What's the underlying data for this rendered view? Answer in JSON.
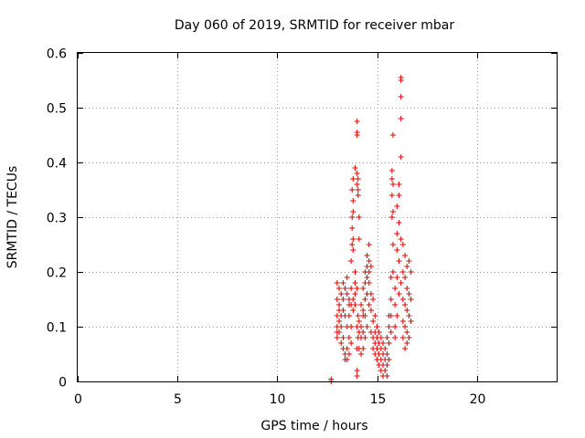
{
  "chart_data": {
    "type": "scatter",
    "title": "Day 060 of 2019, SRMTID for receiver mbar",
    "xlabel": "GPS time / hours",
    "ylabel": "SRMTID / TECUs",
    "xlim": [
      0,
      24
    ],
    "ylim": [
      0,
      0.6
    ],
    "xticks": [
      0,
      5,
      10,
      15,
      20
    ],
    "xtick_labels": [
      "0",
      "5",
      "10",
      "15",
      "20"
    ],
    "yticks": [
      0,
      0.1,
      0.2,
      0.3,
      0.4,
      0.5,
      0.6
    ],
    "ytick_labels": [
      "0",
      "0.1",
      "0.2",
      "0.3",
      "0.4",
      "0.5",
      "0.6"
    ],
    "grid": true,
    "marker": "+",
    "color": "#e00000",
    "series": [
      {
        "name": "mbar",
        "points": [
          [
            12.7,
            0.0
          ],
          [
            12.7,
            0.004
          ],
          [
            13.0,
            0.18
          ],
          [
            13.0,
            0.15
          ],
          [
            13.0,
            0.12
          ],
          [
            13.0,
            0.1
          ],
          [
            13.0,
            0.09
          ],
          [
            13.0,
            0.08
          ],
          [
            13.1,
            0.17
          ],
          [
            13.1,
            0.14
          ],
          [
            13.1,
            0.13
          ],
          [
            13.1,
            0.11
          ],
          [
            13.1,
            0.09
          ],
          [
            13.2,
            0.16
          ],
          [
            13.2,
            0.12
          ],
          [
            13.2,
            0.1
          ],
          [
            13.2,
            0.07
          ],
          [
            13.3,
            0.18
          ],
          [
            13.3,
            0.15
          ],
          [
            13.3,
            0.13
          ],
          [
            13.3,
            0.08
          ],
          [
            13.3,
            0.06
          ],
          [
            13.4,
            0.17
          ],
          [
            13.4,
            0.12
          ],
          [
            13.4,
            0.05
          ],
          [
            13.4,
            0.04
          ],
          [
            13.5,
            0.19
          ],
          [
            13.5,
            0.16
          ],
          [
            13.5,
            0.1
          ],
          [
            13.5,
            0.06
          ],
          [
            13.5,
            0.04
          ],
          [
            13.6,
            0.15
          ],
          [
            13.6,
            0.14
          ],
          [
            13.6,
            0.12
          ],
          [
            13.6,
            0.08
          ],
          [
            13.6,
            0.05
          ],
          [
            13.7,
            0.22
          ],
          [
            13.7,
            0.17
          ],
          [
            13.7,
            0.14
          ],
          [
            13.7,
            0.1
          ],
          [
            13.7,
            0.07
          ],
          [
            13.75,
            0.35
          ],
          [
            13.75,
            0.3
          ],
          [
            13.75,
            0.28
          ],
          [
            13.75,
            0.25
          ],
          [
            13.8,
            0.37
          ],
          [
            13.8,
            0.33
          ],
          [
            13.8,
            0.31
          ],
          [
            13.8,
            0.26
          ],
          [
            13.8,
            0.24
          ],
          [
            13.8,
            0.15
          ],
          [
            13.8,
            0.13
          ],
          [
            13.9,
            0.39
          ],
          [
            13.9,
            0.2
          ],
          [
            13.9,
            0.18
          ],
          [
            13.9,
            0.16
          ],
          [
            13.9,
            0.14
          ],
          [
            14.0,
            0.475
          ],
          [
            14.0,
            0.455
          ],
          [
            14.0,
            0.45
          ],
          [
            14.0,
            0.38
          ],
          [
            14.0,
            0.36
          ],
          [
            14.0,
            0.17
          ],
          [
            14.0,
            0.1
          ],
          [
            14.0,
            0.06
          ],
          [
            14.0,
            0.02
          ],
          [
            14.0,
            0.01
          ],
          [
            14.05,
            0.37
          ],
          [
            14.05,
            0.35
          ],
          [
            14.05,
            0.34
          ],
          [
            14.05,
            0.12
          ],
          [
            14.05,
            0.08
          ],
          [
            14.1,
            0.3
          ],
          [
            14.1,
            0.26
          ],
          [
            14.1,
            0.11
          ],
          [
            14.1,
            0.09
          ],
          [
            14.1,
            0.06
          ],
          [
            14.2,
            0.14
          ],
          [
            14.2,
            0.1
          ],
          [
            14.2,
            0.08
          ],
          [
            14.2,
            0.05
          ],
          [
            14.3,
            0.17
          ],
          [
            14.3,
            0.13
          ],
          [
            14.3,
            0.12
          ],
          [
            14.3,
            0.09
          ],
          [
            14.3,
            0.06
          ],
          [
            14.4,
            0.2
          ],
          [
            14.4,
            0.18
          ],
          [
            14.4,
            0.15
          ],
          [
            14.4,
            0.12
          ],
          [
            14.4,
            0.08
          ],
          [
            14.5,
            0.23
          ],
          [
            14.5,
            0.21
          ],
          [
            14.5,
            0.19
          ],
          [
            14.5,
            0.16
          ],
          [
            14.5,
            0.1
          ],
          [
            14.6,
            0.25
          ],
          [
            14.6,
            0.22
          ],
          [
            14.6,
            0.2
          ],
          [
            14.6,
            0.18
          ],
          [
            14.6,
            0.14
          ],
          [
            14.7,
            0.21
          ],
          [
            14.7,
            0.16
          ],
          [
            14.7,
            0.13
          ],
          [
            14.7,
            0.09
          ],
          [
            14.8,
            0.15
          ],
          [
            14.8,
            0.11
          ],
          [
            14.8,
            0.08
          ],
          [
            14.8,
            0.06
          ],
          [
            14.9,
            0.12
          ],
          [
            14.9,
            0.09
          ],
          [
            14.9,
            0.07
          ],
          [
            14.9,
            0.05
          ],
          [
            15.0,
            0.1
          ],
          [
            15.0,
            0.08
          ],
          [
            15.0,
            0.06
          ],
          [
            15.0,
            0.04
          ],
          [
            15.1,
            0.09
          ],
          [
            15.1,
            0.07
          ],
          [
            15.1,
            0.05
          ],
          [
            15.1,
            0.03
          ],
          [
            15.2,
            0.08
          ],
          [
            15.2,
            0.06
          ],
          [
            15.2,
            0.04
          ],
          [
            15.2,
            0.02
          ],
          [
            15.3,
            0.07
          ],
          [
            15.3,
            0.05
          ],
          [
            15.3,
            0.03
          ],
          [
            15.3,
            0.01
          ],
          [
            15.4,
            0.06
          ],
          [
            15.4,
            0.04
          ],
          [
            15.4,
            0.02
          ],
          [
            15.5,
            0.08
          ],
          [
            15.5,
            0.05
          ],
          [
            15.5,
            0.03
          ],
          [
            15.5,
            0.01
          ],
          [
            15.6,
            0.12
          ],
          [
            15.6,
            0.1
          ],
          [
            15.6,
            0.07
          ],
          [
            15.6,
            0.04
          ],
          [
            15.7,
            0.19
          ],
          [
            15.7,
            0.15
          ],
          [
            15.7,
            0.12
          ],
          [
            15.7,
            0.09
          ],
          [
            15.75,
            0.385
          ],
          [
            15.75,
            0.37
          ],
          [
            15.75,
            0.34
          ],
          [
            15.75,
            0.3
          ],
          [
            15.8,
            0.45
          ],
          [
            15.8,
            0.36
          ],
          [
            15.8,
            0.31
          ],
          [
            15.8,
            0.25
          ],
          [
            15.8,
            0.2
          ],
          [
            15.9,
            0.17
          ],
          [
            15.9,
            0.14
          ],
          [
            15.9,
            0.1
          ],
          [
            15.9,
            0.08
          ],
          [
            16.0,
            0.32
          ],
          [
            16.0,
            0.27
          ],
          [
            16.0,
            0.24
          ],
          [
            16.0,
            0.19
          ],
          [
            16.0,
            0.12
          ],
          [
            16.1,
            0.36
          ],
          [
            16.1,
            0.34
          ],
          [
            16.1,
            0.29
          ],
          [
            16.1,
            0.22
          ],
          [
            16.1,
            0.16
          ],
          [
            16.2,
            0.555
          ],
          [
            16.2,
            0.55
          ],
          [
            16.2,
            0.52
          ],
          [
            16.2,
            0.48
          ],
          [
            16.2,
            0.41
          ],
          [
            16.2,
            0.26
          ],
          [
            16.2,
            0.18
          ],
          [
            16.3,
            0.25
          ],
          [
            16.3,
            0.2
          ],
          [
            16.3,
            0.15
          ],
          [
            16.3,
            0.11
          ],
          [
            16.3,
            0.08
          ],
          [
            16.4,
            0.23
          ],
          [
            16.4,
            0.19
          ],
          [
            16.4,
            0.14
          ],
          [
            16.4,
            0.1
          ],
          [
            16.4,
            0.06
          ],
          [
            16.5,
            0.21
          ],
          [
            16.5,
            0.17
          ],
          [
            16.5,
            0.13
          ],
          [
            16.5,
            0.09
          ],
          [
            16.5,
            0.07
          ],
          [
            16.6,
            0.22
          ],
          [
            16.6,
            0.16
          ],
          [
            16.6,
            0.12
          ],
          [
            16.6,
            0.08
          ],
          [
            16.7,
            0.2
          ],
          [
            16.7,
            0.15
          ],
          [
            16.7,
            0.11
          ]
        ]
      }
    ]
  }
}
